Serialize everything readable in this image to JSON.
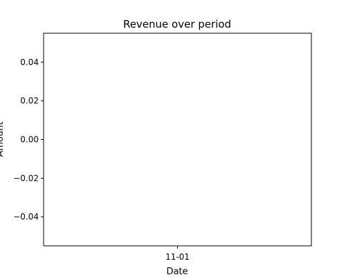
{
  "chart_data": {
    "type": "line",
    "title": "Revenue over period",
    "xlabel": "Date",
    "ylabel": "Amount",
    "x": [
      "11-01"
    ],
    "series": [],
    "ylim": [
      -0.055,
      0.055
    ],
    "yticks": [
      0.04,
      0.02,
      0.0,
      -0.02,
      -0.04
    ],
    "ytick_labels": [
      "0.04",
      "0.02",
      "0.00",
      "−0.02",
      "−0.04"
    ],
    "xtick_labels": [
      "11-01"
    ],
    "grid": false,
    "legend": "none"
  }
}
